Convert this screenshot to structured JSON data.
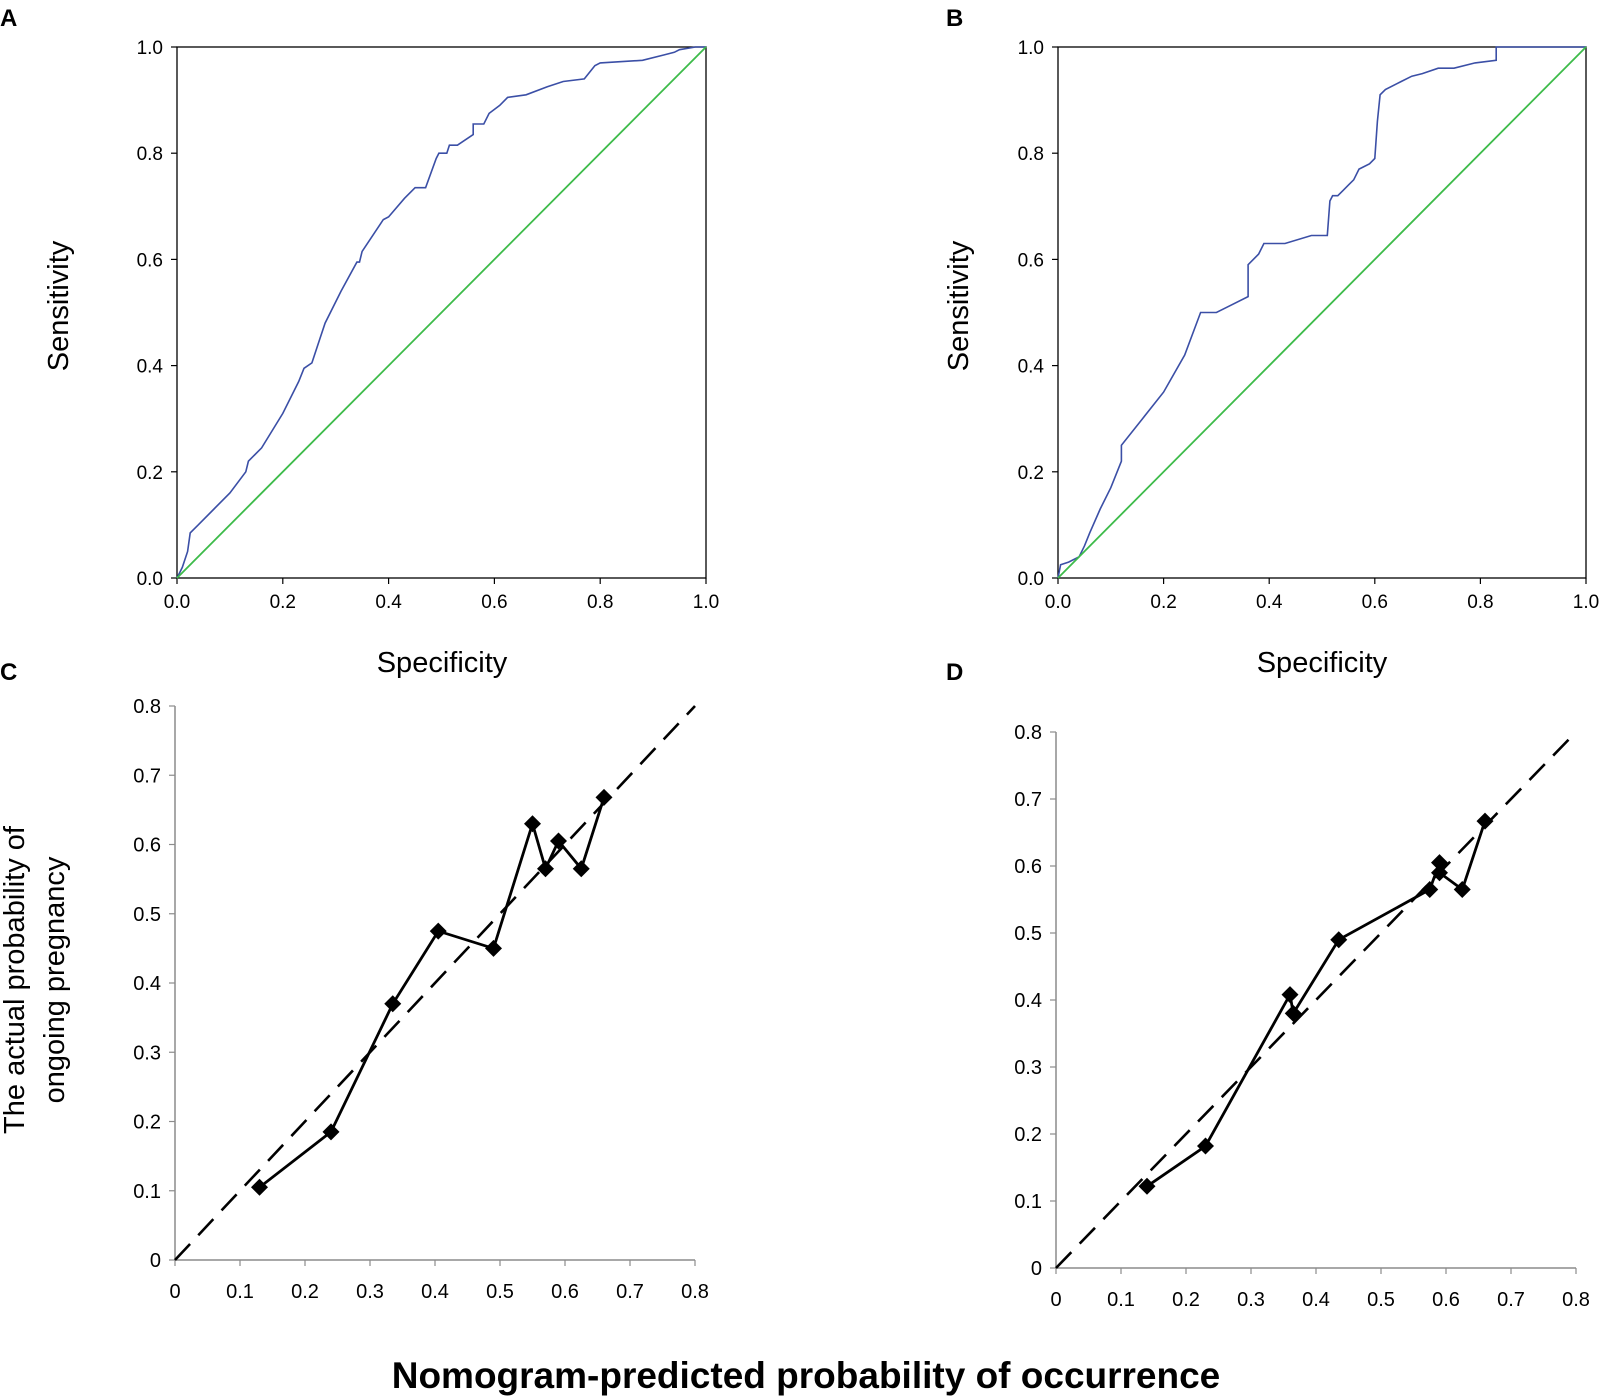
{
  "shared_xlabel": "Nomogram-predicted probability of occurrence",
  "chart_data": [
    {
      "panel": "A",
      "type": "line",
      "xlabel": "Specificity",
      "ylabel": "Sensitivity",
      "xlim": [
        0,
        1
      ],
      "ylim": [
        0,
        1
      ],
      "ticks": [
        "0.0",
        "0.2",
        "0.4",
        "0.6",
        "0.8",
        "1.0"
      ],
      "series": [
        {
          "name": "ROC curve",
          "color": "#3b4fa6",
          "points": [
            [
              0,
              0
            ],
            [
              0.01,
              0.02
            ],
            [
              0.02,
              0.05
            ],
            [
              0.025,
              0.085
            ],
            [
              0.04,
              0.1
            ],
            [
              0.07,
              0.13
            ],
            [
              0.1,
              0.16
            ],
            [
              0.13,
              0.2
            ],
            [
              0.135,
              0.22
            ],
            [
              0.16,
              0.245
            ],
            [
              0.2,
              0.31
            ],
            [
              0.23,
              0.37
            ],
            [
              0.24,
              0.395
            ],
            [
              0.255,
              0.405
            ],
            [
              0.27,
              0.45
            ],
            [
              0.28,
              0.48
            ],
            [
              0.31,
              0.54
            ],
            [
              0.34,
              0.595
            ],
            [
              0.345,
              0.595
            ],
            [
              0.35,
              0.615
            ],
            [
              0.39,
              0.675
            ],
            [
              0.4,
              0.68
            ],
            [
              0.43,
              0.715
            ],
            [
              0.45,
              0.735
            ],
            [
              0.47,
              0.735
            ],
            [
              0.49,
              0.79
            ],
            [
              0.495,
              0.8
            ],
            [
              0.51,
              0.8
            ],
            [
              0.515,
              0.815
            ],
            [
              0.53,
              0.815
            ],
            [
              0.56,
              0.835
            ],
            [
              0.56,
              0.855
            ],
            [
              0.58,
              0.855
            ],
            [
              0.59,
              0.875
            ],
            [
              0.61,
              0.89
            ],
            [
              0.625,
              0.905
            ],
            [
              0.66,
              0.91
            ],
            [
              0.7,
              0.925
            ],
            [
              0.73,
              0.935
            ],
            [
              0.77,
              0.94
            ],
            [
              0.79,
              0.965
            ],
            [
              0.8,
              0.97
            ],
            [
              0.88,
              0.975
            ],
            [
              0.92,
              0.985
            ],
            [
              0.94,
              0.99
            ],
            [
              0.95,
              0.995
            ],
            [
              0.98,
              1.0
            ],
            [
              1,
              1
            ]
          ]
        },
        {
          "name": "Reference",
          "color": "#3dbb4a",
          "points": [
            [
              0,
              0
            ],
            [
              1,
              1
            ]
          ]
        }
      ]
    },
    {
      "panel": "B",
      "type": "line",
      "xlabel": "Specificity",
      "ylabel": "Sensitivity",
      "xlim": [
        0,
        1
      ],
      "ylim": [
        0,
        1
      ],
      "ticks": [
        "0.0",
        "0.2",
        "0.4",
        "0.6",
        "0.8",
        "1.0"
      ],
      "series": [
        {
          "name": "ROC curve",
          "color": "#3b4fa6",
          "points": [
            [
              0,
              0
            ],
            [
              0.005,
              0.025
            ],
            [
              0.02,
              0.03
            ],
            [
              0.04,
              0.04
            ],
            [
              0.05,
              0.06
            ],
            [
              0.06,
              0.085
            ],
            [
              0.08,
              0.13
            ],
            [
              0.1,
              0.17
            ],
            [
              0.12,
              0.22
            ],
            [
              0.12,
              0.25
            ],
            [
              0.16,
              0.3
            ],
            [
              0.2,
              0.35
            ],
            [
              0.24,
              0.42
            ],
            [
              0.27,
              0.5
            ],
            [
              0.3,
              0.5
            ],
            [
              0.32,
              0.51
            ],
            [
              0.36,
              0.53
            ],
            [
              0.36,
              0.59
            ],
            [
              0.38,
              0.61
            ],
            [
              0.39,
              0.63
            ],
            [
              0.43,
              0.63
            ],
            [
              0.48,
              0.645
            ],
            [
              0.51,
              0.645
            ],
            [
              0.515,
              0.71
            ],
            [
              0.52,
              0.72
            ],
            [
              0.53,
              0.72
            ],
            [
              0.54,
              0.73
            ],
            [
              0.55,
              0.74
            ],
            [
              0.56,
              0.75
            ],
            [
              0.57,
              0.77
            ],
            [
              0.59,
              0.78
            ],
            [
              0.6,
              0.79
            ],
            [
              0.605,
              0.86
            ],
            [
              0.61,
              0.91
            ],
            [
              0.62,
              0.92
            ],
            [
              0.65,
              0.935
            ],
            [
              0.67,
              0.945
            ],
            [
              0.69,
              0.95
            ],
            [
              0.72,
              0.96
            ],
            [
              0.75,
              0.96
            ],
            [
              0.79,
              0.97
            ],
            [
              0.83,
              0.975
            ],
            [
              0.83,
              1.0
            ],
            [
              1,
              1
            ]
          ]
        },
        {
          "name": "Reference",
          "color": "#3dbb4a",
          "points": [
            [
              0,
              0
            ],
            [
              1,
              1
            ]
          ]
        }
      ]
    },
    {
      "panel": "C",
      "type": "line",
      "xlabel": "",
      "ylabel_lines": [
        "The actual probability of",
        "ongoing pregnancy"
      ],
      "xlim": [
        0,
        0.8
      ],
      "ylim": [
        0,
        0.8
      ],
      "ticks": [
        "0",
        "0.1",
        "0.2",
        "0.3",
        "0.4",
        "0.5",
        "0.6",
        "0.7",
        "0.8"
      ],
      "series": [
        {
          "name": "Ideal",
          "style": "dashed",
          "points": [
            [
              0,
              0
            ],
            [
              0.8,
              0.8
            ]
          ]
        },
        {
          "name": "Nomogram",
          "style": "solid",
          "marker": "diamond",
          "points": [
            [
              0.13,
              0.105
            ],
            [
              0.24,
              0.185
            ],
            [
              0.335,
              0.37
            ],
            [
              0.405,
              0.475
            ],
            [
              0.49,
              0.45
            ],
            [
              0.55,
              0.63
            ],
            [
              0.57,
              0.565
            ],
            [
              0.59,
              0.605
            ],
            [
              0.625,
              0.565
            ],
            [
              0.66,
              0.668
            ]
          ]
        }
      ]
    },
    {
      "panel": "D",
      "type": "line",
      "xlabel": "",
      "ylabel": "",
      "xlim": [
        0,
        0.8
      ],
      "ylim": [
        0,
        0.8
      ],
      "ticks": [
        "0",
        "0.1",
        "0.2",
        "0.3",
        "0.4",
        "0.5",
        "0.6",
        "0.7",
        "0.8"
      ],
      "series": [
        {
          "name": "Ideal",
          "style": "dashed",
          "points": [
            [
              0,
              0
            ],
            [
              0.8,
              0.8
            ]
          ]
        },
        {
          "name": "Nomogram",
          "style": "solid",
          "marker": "diamond",
          "points": [
            [
              0.14,
              0.122
            ],
            [
              0.23,
              0.182
            ],
            [
              0.36,
              0.408
            ],
            [
              0.365,
              0.38
            ],
            [
              0.435,
              0.49
            ],
            [
              0.575,
              0.565
            ],
            [
              0.59,
              0.605
            ],
            [
              0.59,
              0.59
            ],
            [
              0.625,
              0.565
            ],
            [
              0.66,
              0.667
            ]
          ]
        }
      ]
    }
  ]
}
